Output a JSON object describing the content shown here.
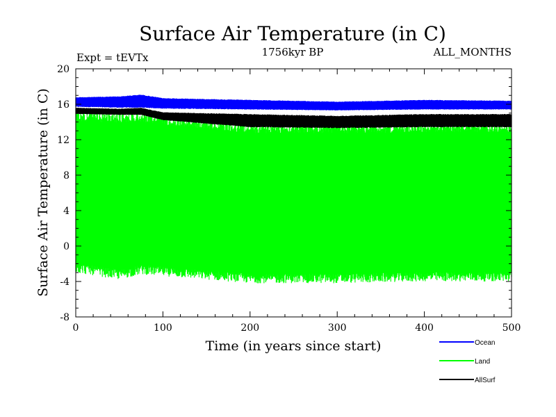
{
  "chart_data": {
    "type": "line",
    "title": "Surface Air Temperature (in C)",
    "subtitle_left": "Expt = tEVTx",
    "subtitle_center": "1756kyr BP",
    "subtitle_right": "ALL_MONTHS",
    "xlabel": "Time (in years since start)",
    "ylabel": "Surface Air Temperature (in C)",
    "xlim": [
      0,
      500
    ],
    "ylim": [
      -8,
      20
    ],
    "xticks": [
      "0",
      "100",
      "200",
      "300",
      "400",
      "500"
    ],
    "yticks": [
      "-8",
      "-4",
      "0",
      "4",
      "8",
      "12",
      "16",
      "20"
    ],
    "grid": false,
    "legend_position": "bottom-right",
    "series": [
      {
        "name": "Ocean",
        "color": "#0000ff",
        "x": [
          0,
          50,
          75,
          100,
          200,
          300,
          400,
          500
        ],
        "min": [
          15.7,
          15.6,
          15.6,
          15.5,
          15.4,
          15.3,
          15.4,
          15.4
        ],
        "max": [
          16.8,
          16.9,
          17.1,
          16.7,
          16.5,
          16.3,
          16.5,
          16.4
        ]
      },
      {
        "name": "Land",
        "color": "#00ff00",
        "x": [
          0,
          50,
          75,
          100,
          200,
          300,
          400,
          500
        ],
        "min": [
          -3.0,
          -3.8,
          -3.2,
          -3.4,
          -4.2,
          -4.2,
          -4.0,
          -4.0
        ],
        "max": [
          15.2,
          15.0,
          15.1,
          14.8,
          13.8,
          13.8,
          13.9,
          13.9
        ]
      },
      {
        "name": "AllSurf",
        "color": "#000000",
        "x": [
          0,
          50,
          75,
          100,
          200,
          300,
          400,
          500
        ],
        "min": [
          14.9,
          14.8,
          14.8,
          14.2,
          13.4,
          13.3,
          13.4,
          13.4
        ],
        "max": [
          15.6,
          15.5,
          15.6,
          15.1,
          14.9,
          14.7,
          14.9,
          14.9
        ]
      }
    ]
  }
}
